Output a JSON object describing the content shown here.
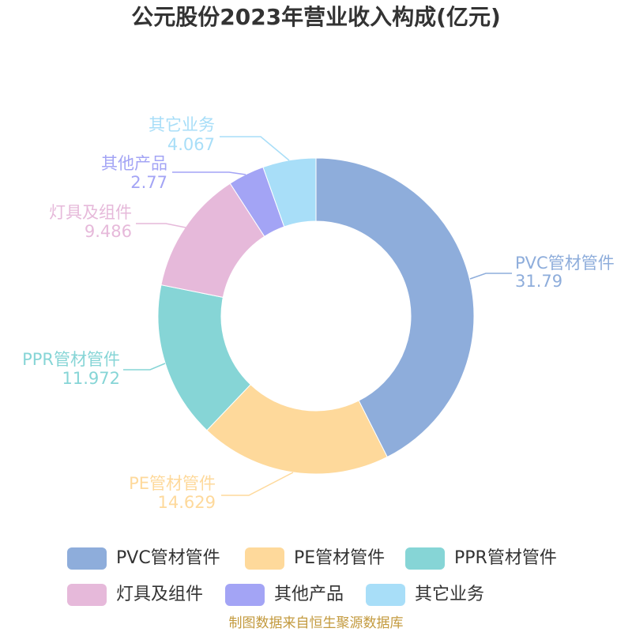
{
  "footer": "制图数据来自恒生聚源数据库",
  "chart_data": {
    "type": "pie",
    "donut": true,
    "title": "公元股份2023年营业收入构成(亿元)",
    "start": "top",
    "direction": "clockwise",
    "legend": "bottom",
    "categories": [
      "PVC管材管件",
      "PE管材管件",
      "PPR管材管件",
      "灯具及组件",
      "其他产品",
      "其它业务"
    ],
    "values": [
      31.79,
      14.629,
      11.972,
      9.486,
      2.77,
      4.067
    ],
    "colors": [
      "#8eaddb",
      "#fed99b",
      "#86d5d6",
      "#e6b9da",
      "#a3a4f5",
      "#a8def8"
    ]
  }
}
